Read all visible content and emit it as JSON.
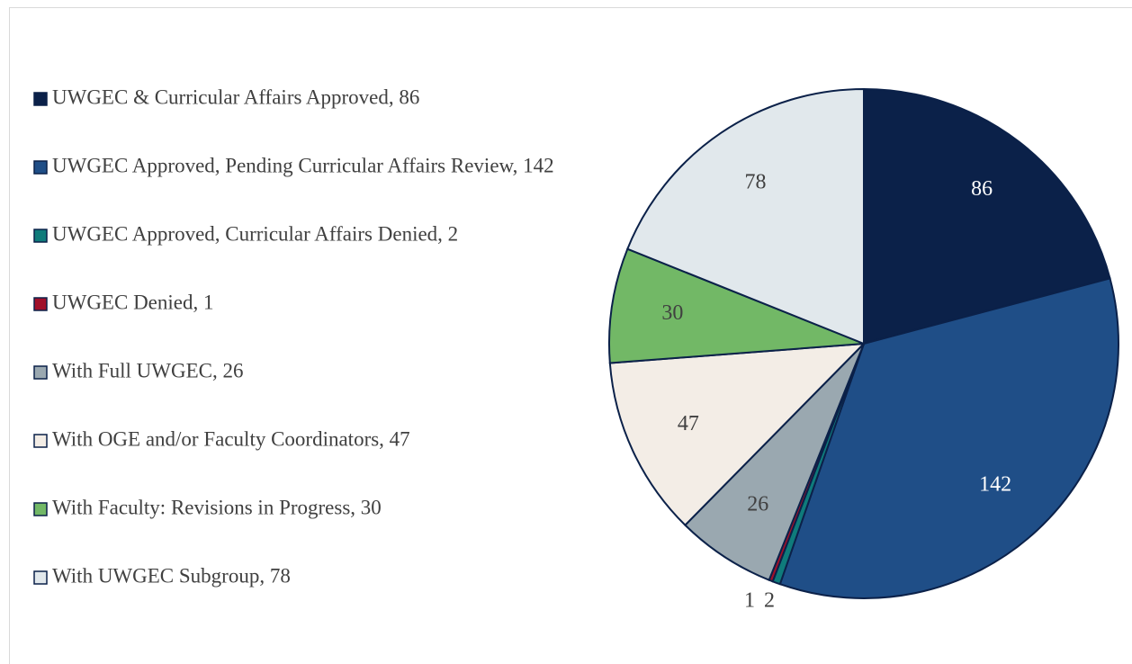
{
  "chart_data": {
    "type": "pie",
    "categories": [
      "UWGEC & Curricular Affairs Approved, 86",
      "UWGEC Approved, Pending Curricular Affairs Review, 142",
      "UWGEC Approved, Curricular Affairs Denied, 2",
      "UWGEC Denied, 1",
      "With Full UWGEC, 26",
      "With OGE and/or Faculty Coordinators, 47",
      "With Faculty: Revisions in Progress, 30",
      "With UWGEC Subgroup, 78"
    ],
    "values": [
      86,
      142,
      2,
      1,
      26,
      47,
      30,
      78
    ],
    "colors": [
      "#0b2149",
      "#1f4e87",
      "#0f7b7b",
      "#a0102a",
      "#9aa8b0",
      "#f3ede6",
      "#72b866",
      "#e1e8ec"
    ],
    "legend": "left"
  }
}
